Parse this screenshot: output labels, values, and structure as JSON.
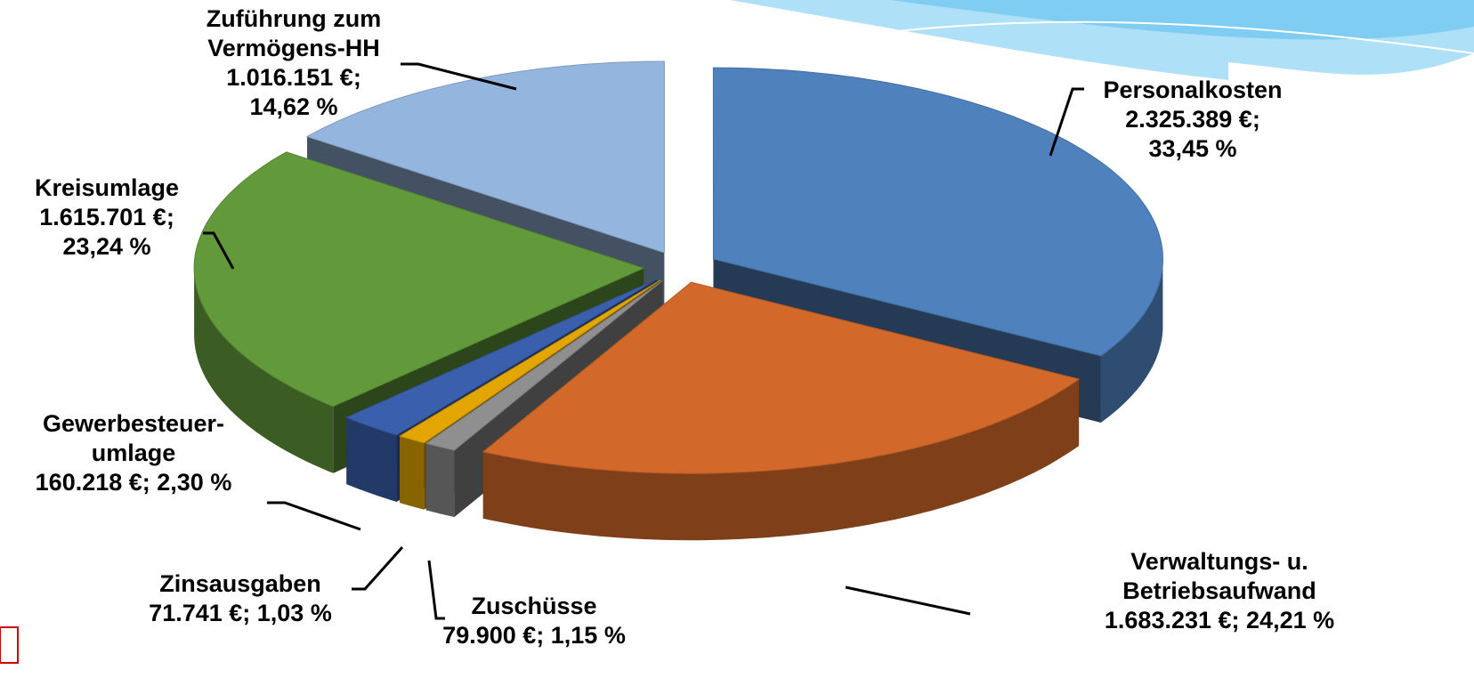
{
  "chart_data": {
    "type": "pie3d",
    "categories": [
      "Personalkosten",
      "Verwaltungs- u. Betriebsaufwand",
      "Zuschüsse",
      "Zinsausgaben",
      "Gewerbesteuer-umlage",
      "Kreisumlage",
      "Zuführung zum Vermögens-HH"
    ],
    "values": [
      2325389,
      1683231,
      79900,
      71741,
      160218,
      1615701,
      1016151
    ],
    "value_labels": [
      "2.325.389 €;",
      "1.683.231 €;",
      "79.900 €;",
      "71.741 €;",
      "160.218 €;",
      "1.615.701 €;",
      "1.016.151 €;"
    ],
    "percents": [
      33.45,
      24.21,
      1.15,
      1.03,
      2.3,
      23.24,
      14.62
    ],
    "percent_labels": [
      "33,45 %",
      "24,21 %",
      "1,15 %",
      "1,03 %",
      "2,30 %",
      "23,24 %",
      "14,62 %"
    ],
    "colors": [
      "#4f81bd",
      "#d2692a",
      "#8f8f8f",
      "#e3a600",
      "#3a60ad",
      "#629a3b",
      "#94b5dd"
    ]
  }
}
